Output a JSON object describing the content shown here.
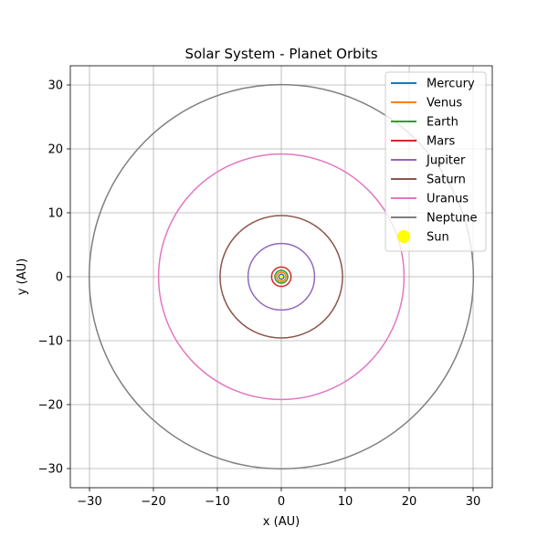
{
  "chart_data": {
    "type": "line",
    "title": "Solar System - Planet Orbits",
    "xlabel": "x (AU)",
    "ylabel": "y (AU)",
    "xlim": [
      -33,
      33
    ],
    "ylim": [
      -33,
      33
    ],
    "xticks": [
      "−30",
      "−20",
      "−10",
      "0",
      "10",
      "20",
      "30"
    ],
    "yticks": [
      "−30",
      "−20",
      "−10",
      "0",
      "10",
      "20",
      "30"
    ],
    "tick_values": [
      -30,
      -20,
      -10,
      0,
      10,
      20,
      30
    ],
    "grid": true,
    "legend_position": "top-right",
    "series": [
      {
        "name": "Mercury",
        "radius_au": 0.39,
        "color": "#1f77b4"
      },
      {
        "name": "Venus",
        "radius_au": 0.72,
        "color": "#ff7f0e"
      },
      {
        "name": "Earth",
        "radius_au": 1.0,
        "color": "#2ca02c"
      },
      {
        "name": "Mars",
        "radius_au": 1.52,
        "color": "#d62728"
      },
      {
        "name": "Jupiter",
        "radius_au": 5.2,
        "color": "#9467bd"
      },
      {
        "name": "Saturn",
        "radius_au": 9.58,
        "color": "#8c564b"
      },
      {
        "name": "Uranus",
        "radius_au": 19.2,
        "color": "#e377c2"
      },
      {
        "name": "Neptune",
        "radius_au": 30.05,
        "color": "#7f7f7f"
      }
    ],
    "sun": {
      "name": "Sun",
      "x": 0,
      "y": 0,
      "color": "#ffff00"
    }
  }
}
